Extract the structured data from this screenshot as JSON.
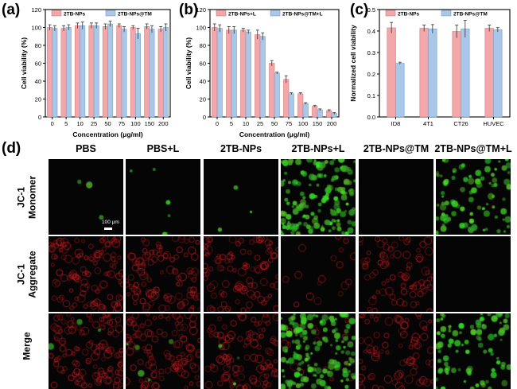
{
  "panel_labels": [
    "(a)",
    "(b)",
    "(c)",
    "(d)"
  ],
  "colors": {
    "pink": "#f4a7a9",
    "blue": "#a9c7e8",
    "green": "#3fd13a",
    "red": "#c8262a"
  },
  "chart_data": [
    {
      "type": "bar",
      "categories": [
        "0",
        "5",
        "10",
        "25",
        "50",
        "75",
        "100",
        "150",
        "200"
      ],
      "series": [
        {
          "name": "2TB-NPs",
          "values": [
            100,
            99,
            102,
            102,
            101,
            102,
            100,
            101,
            98
          ],
          "errors": [
            3,
            3,
            3,
            3,
            3,
            2,
            2,
            3,
            3
          ]
        },
        {
          "name": "2TB-NPs@TM",
          "values": [
            99,
            100,
            102,
            102,
            104,
            98,
            93,
            98,
            100
          ],
          "errors": [
            3,
            3,
            4,
            3,
            3,
            3,
            6,
            4,
            4
          ]
        }
      ],
      "xlabel": "Concentration (μg/ml)",
      "ylabel": "Cell viability (%)",
      "ylim": [
        0,
        120
      ],
      "yticks": [
        "0",
        "20",
        "40",
        "60",
        "80",
        "100",
        "120"
      ],
      "legend": "top"
    },
    {
      "type": "bar",
      "categories": [
        "0",
        "5",
        "10",
        "25",
        "50",
        "75",
        "100",
        "150",
        "200"
      ],
      "series": [
        {
          "name": "2TB-NPs+L",
          "values": [
            100,
            97,
            97,
            92,
            60,
            42,
            26,
            12,
            7
          ],
          "errors": [
            4,
            4,
            2,
            5,
            3,
            4,
            1,
            1,
            1
          ]
        },
        {
          "name": "2TB-NPs@TM+L",
          "values": [
            99,
            97,
            95,
            90,
            49,
            26,
            15,
            8,
            4
          ],
          "errors": [
            4,
            4,
            2,
            4,
            1,
            1,
            1,
            1,
            1
          ]
        }
      ],
      "xlabel": "Concentration (μg/ml)",
      "ylabel": "Cell viability (%)",
      "ylim": [
        0,
        120
      ],
      "yticks": [
        "0",
        "20",
        "40",
        "60",
        "80",
        "100",
        "120"
      ],
      "legend": "top"
    },
    {
      "type": "bar",
      "categories": [
        "ID8",
        "4T1",
        "CT26",
        "HUVEC"
      ],
      "series": [
        {
          "name": "2TB-NPs",
          "values": [
            0.415,
            0.413,
            0.398,
            0.413
          ],
          "errors": [
            0.025,
            0.015,
            0.03,
            0.015
          ]
        },
        {
          "name": "2TB-NPs@TM",
          "values": [
            0.25,
            0.41,
            0.41,
            0.406
          ],
          "errors": [
            0.005,
            0.02,
            0.04,
            0.01
          ]
        }
      ],
      "ylabel": "Normalized cell viability",
      "ylim": [
        0,
        0.5
      ],
      "yticks": [
        "0.0",
        "0.1",
        "0.2",
        "0.3",
        "0.4",
        "0.5"
      ],
      "legend": "top"
    }
  ],
  "microscopy": {
    "columns": [
      "PBS",
      "PBS+L",
      "2TB-NPs",
      "2TB-NPs+L",
      "2TB-NPs@TM",
      "2TB-NPs@TM+L"
    ],
    "rows": [
      {
        "label_line1": "JC-1",
        "label_line2": "Monomer",
        "green": [
          0.02,
          0.03,
          0.02,
          1.0,
          0.0,
          0.55
        ],
        "red": [
          0,
          0,
          0,
          0,
          0,
          0
        ]
      },
      {
        "label_line1": "JC-1",
        "label_line2": "Aggregate",
        "green": [
          0,
          0,
          0,
          0,
          0,
          0
        ],
        "red": [
          1.0,
          0.9,
          0.9,
          0.15,
          0.7,
          0.0
        ]
      },
      {
        "label_line1": "Merge",
        "label_line2": "",
        "green": [
          0.02,
          0.03,
          0.02,
          1.0,
          0.0,
          0.55
        ],
        "red": [
          1.0,
          0.9,
          0.9,
          0.15,
          0.7,
          0.0
        ]
      }
    ],
    "scale_bar_label": "100 μm"
  }
}
